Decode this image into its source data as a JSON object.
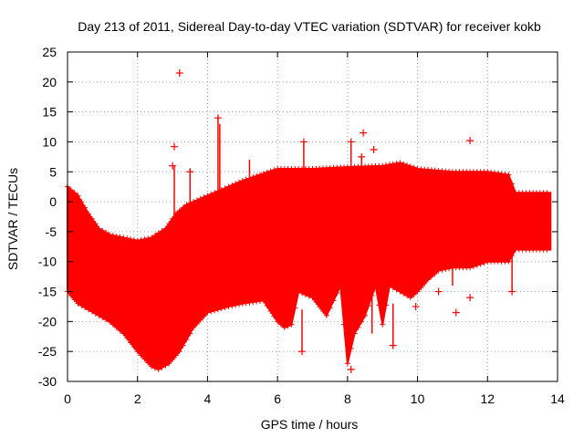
{
  "chart_data": {
    "type": "scatter",
    "title": "Day 213 of 2011, Sidereal Day-to-day VTEC variation (SDTVAR) for receiver kokb",
    "xlabel": "GPS time / hours",
    "ylabel": "SDTVAR / TECUs",
    "xlim": [
      0,
      14
    ],
    "ylim": [
      -30,
      25
    ],
    "xticks": [
      0,
      2,
      4,
      6,
      8,
      10,
      12,
      14
    ],
    "yticks": [
      -30,
      -25,
      -20,
      -15,
      -10,
      -5,
      0,
      5,
      10,
      15,
      20,
      25
    ],
    "grid": true,
    "marker": "+",
    "color": "#ff0000",
    "envelope": {
      "upper": [
        [
          0,
          2.5
        ],
        [
          0.3,
          1
        ],
        [
          0.6,
          -2
        ],
        [
          0.9,
          -4.5
        ],
        [
          1.2,
          -5.5
        ],
        [
          1.6,
          -6
        ],
        [
          2.0,
          -6.5
        ],
        [
          2.4,
          -6
        ],
        [
          2.8,
          -4.5
        ],
        [
          3.1,
          -2
        ],
        [
          3.4,
          -0.5
        ],
        [
          3.8,
          0.5
        ],
        [
          4.2,
          1.5
        ],
        [
          4.6,
          2.5
        ],
        [
          5.0,
          3.5
        ],
        [
          5.5,
          4.5
        ],
        [
          6.0,
          5.5
        ],
        [
          7.0,
          5.5
        ],
        [
          8.0,
          5.8
        ],
        [
          9.0,
          6.0
        ],
        [
          9.5,
          6.5
        ],
        [
          10.0,
          5.5
        ],
        [
          11.0,
          5.0
        ],
        [
          12.0,
          5.0
        ],
        [
          12.6,
          4.5
        ],
        [
          12.8,
          1.5
        ],
        [
          13.8,
          1.5
        ]
      ],
      "lower": [
        [
          0,
          -15
        ],
        [
          0.3,
          -17
        ],
        [
          0.6,
          -18
        ],
        [
          0.9,
          -19
        ],
        [
          1.2,
          -20
        ],
        [
          1.6,
          -22
        ],
        [
          2.0,
          -25
        ],
        [
          2.4,
          -27.5
        ],
        [
          2.6,
          -28
        ],
        [
          2.9,
          -27
        ],
        [
          3.2,
          -25
        ],
        [
          3.6,
          -21
        ],
        [
          4.0,
          -18.5
        ],
        [
          4.6,
          -17.5
        ],
        [
          5.0,
          -17
        ],
        [
          5.6,
          -16.5
        ],
        [
          6.0,
          -20
        ],
        [
          6.2,
          -21
        ],
        [
          6.4,
          -20.5
        ],
        [
          6.6,
          -15
        ],
        [
          7.0,
          -16
        ],
        [
          7.4,
          -19
        ],
        [
          7.8,
          -14
        ],
        [
          8.0,
          -27
        ],
        [
          8.2,
          -22
        ],
        [
          8.5,
          -19
        ],
        [
          8.8,
          -14
        ],
        [
          9.0,
          -20.5
        ],
        [
          9.2,
          -14
        ],
        [
          9.5,
          -15
        ],
        [
          9.8,
          -16
        ],
        [
          10.0,
          -15
        ],
        [
          10.3,
          -13
        ],
        [
          10.6,
          -11.5
        ],
        [
          11.0,
          -11
        ],
        [
          11.5,
          -11
        ],
        [
          12.0,
          -10
        ],
        [
          12.6,
          -10
        ],
        [
          12.8,
          -8
        ],
        [
          13.8,
          -8
        ]
      ]
    },
    "outliers": [
      {
        "x": 3.2,
        "y": 21.5
      },
      {
        "x": 3.05,
        "y": 9.2
      },
      {
        "x": 4.3,
        "y": 14
      },
      {
        "x": 6.75,
        "y": 10
      },
      {
        "x": 8.1,
        "y": 10
      },
      {
        "x": 8.45,
        "y": 11.5
      },
      {
        "x": 8.75,
        "y": 8.7
      },
      {
        "x": 8.4,
        "y": 7.5
      },
      {
        "x": 11.5,
        "y": 10.2
      },
      {
        "x": 3.0,
        "y": 6
      },
      {
        "x": 3.5,
        "y": 5
      },
      {
        "x": 8.6,
        "y": -8
      },
      {
        "x": 9.95,
        "y": -17.5
      },
      {
        "x": 11.1,
        "y": -18.5
      },
      {
        "x": 11.5,
        "y": -16
      },
      {
        "x": 10.6,
        "y": -15
      },
      {
        "x": 8.1,
        "y": -28
      },
      {
        "x": 6.7,
        "y": -25
      },
      {
        "x": 12.7,
        "y": -15
      },
      {
        "x": 9.3,
        "y": -24
      }
    ],
    "spikes": [
      {
        "x": 4.3,
        "from": 1.5,
        "to": 14
      },
      {
        "x": 4.35,
        "from": 1,
        "to": 13
      },
      {
        "x": 3.5,
        "from": -2,
        "to": 5.5
      },
      {
        "x": 3.05,
        "from": -4,
        "to": 6
      },
      {
        "x": 6.75,
        "from": 5,
        "to": 10
      },
      {
        "x": 8.1,
        "from": 5,
        "to": 10
      },
      {
        "x": 8.4,
        "from": 5,
        "to": 7.5
      },
      {
        "x": 5.2,
        "from": 4,
        "to": 7
      },
      {
        "x": 8.0,
        "from": -27,
        "to": -20
      },
      {
        "x": 6.7,
        "from": -25,
        "to": -18
      },
      {
        "x": 8.7,
        "from": -22,
        "to": -14
      },
      {
        "x": 9.3,
        "from": -24,
        "to": -17
      },
      {
        "x": 12.7,
        "from": -15,
        "to": -8
      },
      {
        "x": 11.0,
        "from": -14,
        "to": -10
      }
    ]
  }
}
